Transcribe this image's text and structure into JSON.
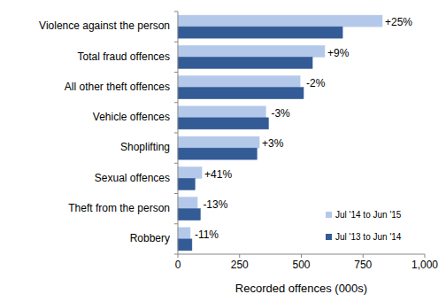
{
  "chart_data": {
    "type": "bar",
    "orientation": "horizontal",
    "categories": [
      "Violence against the person",
      "Total fraud offences",
      "All other theft offences",
      "Vehicle offences",
      "Shoplifting",
      "Sexual offences",
      "Theft from the person",
      "Robbery"
    ],
    "series": [
      {
        "name": "Jul '14 to Jun '15",
        "color": "#b4c9ea",
        "values": [
          828,
          595,
          495,
          356,
          330,
          97,
          79,
          50
        ]
      },
      {
        "name": "Jul '13 to Jun '14",
        "color": "#335b96",
        "values": [
          667,
          545,
          509,
          367,
          320,
          69,
          91,
          57
        ]
      }
    ],
    "annotations": [
      "+25%",
      "+9%",
      "-2%",
      "-3%",
      "+3%",
      "+41%",
      "-13%",
      "-11%"
    ],
    "x_label": "Recorded offences (000s)",
    "xlim": [
      0,
      1000
    ],
    "xticks": [
      0,
      250,
      500,
      750,
      {
        "value": 1000,
        "label": "1,000"
      }
    ],
    "grid": false,
    "legend": "lower right"
  }
}
